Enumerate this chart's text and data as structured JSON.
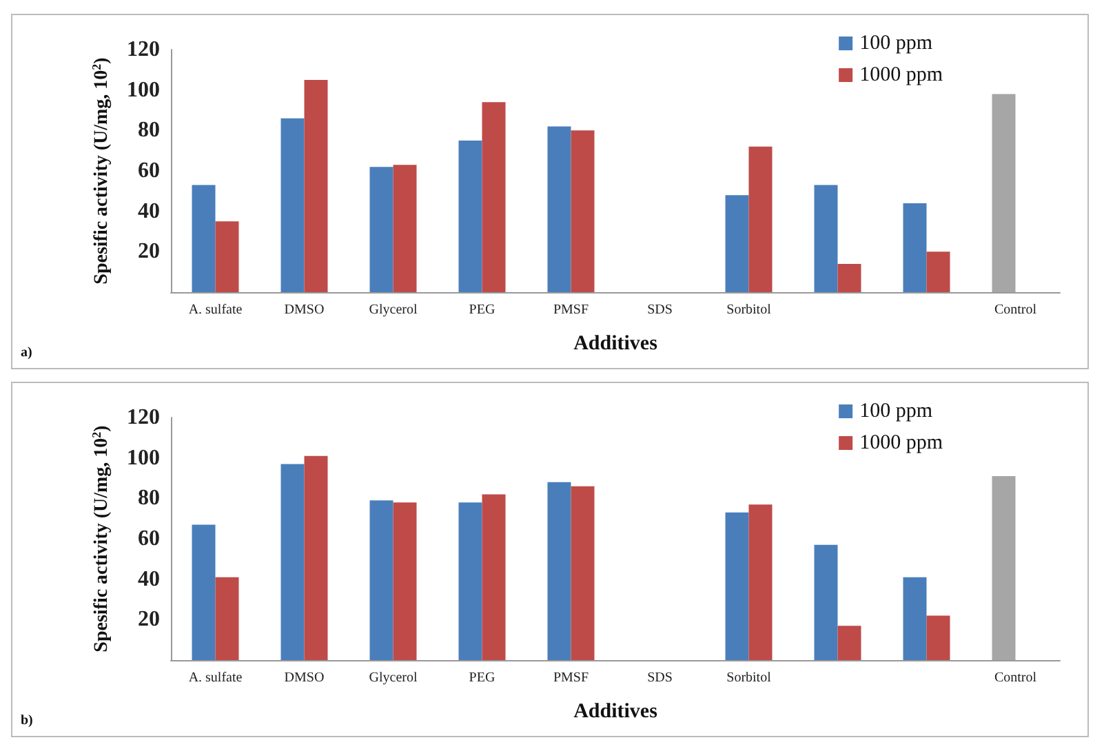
{
  "chart_data": [
    {
      "type": "bar",
      "xlabel": "Additives",
      "ylabel": "Spesific activity (U/mg, 10$^{2}$)",
      "categories": [
        "A. sulfate",
        "DMSO",
        "Glycerol",
        "PEG",
        "PMSF",
        "SDS",
        "Sorbitol",
        null,
        null,
        "Control"
      ],
      "series": [
        {
          "name": "100 ppm",
          "color": "#4a7ebb",
          "colors": [
            "#4a7ebb",
            "#4a7ebb",
            "#4a7ebb",
            "#4a7ebb",
            "#4a7ebb",
            "#4a7ebb",
            "#4a7ebb",
            "#4a7ebb",
            "#4a7ebb",
            "#a6a6a6"
          ],
          "values": [
            53,
            86,
            62,
            75,
            82,
            0,
            48,
            53,
            44,
            98
          ]
        },
        {
          "name": "1000 ppm",
          "color": "#be4b48",
          "values": [
            35,
            105,
            63,
            94,
            80,
            0,
            72,
            14,
            20,
            null
          ]
        }
      ],
      "ylim": [
        0,
        120
      ],
      "yticks": [
        20,
        40,
        60,
        80,
        100,
        120
      ],
      "grid": false,
      "legend": "top right",
      "annotations": [
        "a)"
      ]
    },
    {
      "type": "bar",
      "xlabel": "Additives",
      "ylabel": "Spesific activity (U/mg, 10$^{2}$)",
      "categories": [
        "A. sulfate",
        "DMSO",
        "Glycerol",
        "PEG",
        "PMSF",
        "SDS",
        "Sorbitol",
        null,
        null,
        "Control"
      ],
      "series": [
        {
          "name": "100 ppm",
          "color": "#4a7ebb",
          "colors": [
            "#4a7ebb",
            "#4a7ebb",
            "#4a7ebb",
            "#4a7ebb",
            "#4a7ebb",
            "#4a7ebb",
            "#4a7ebb",
            "#4a7ebb",
            "#4a7ebb",
            "#a6a6a6"
          ],
          "values": [
            67,
            97,
            79,
            78,
            88,
            0,
            73,
            57,
            41,
            91
          ]
        },
        {
          "name": "1000 ppm",
          "color": "#be4b48",
          "values": [
            41,
            101,
            78,
            82,
            86,
            0,
            77,
            17,
            22,
            null
          ]
        }
      ],
      "ylim": [
        0,
        120
      ],
      "yticks": [
        20,
        40,
        60,
        80,
        100,
        120
      ],
      "grid": false,
      "legend": "top right",
      "annotations": [
        "b)"
      ]
    }
  ]
}
